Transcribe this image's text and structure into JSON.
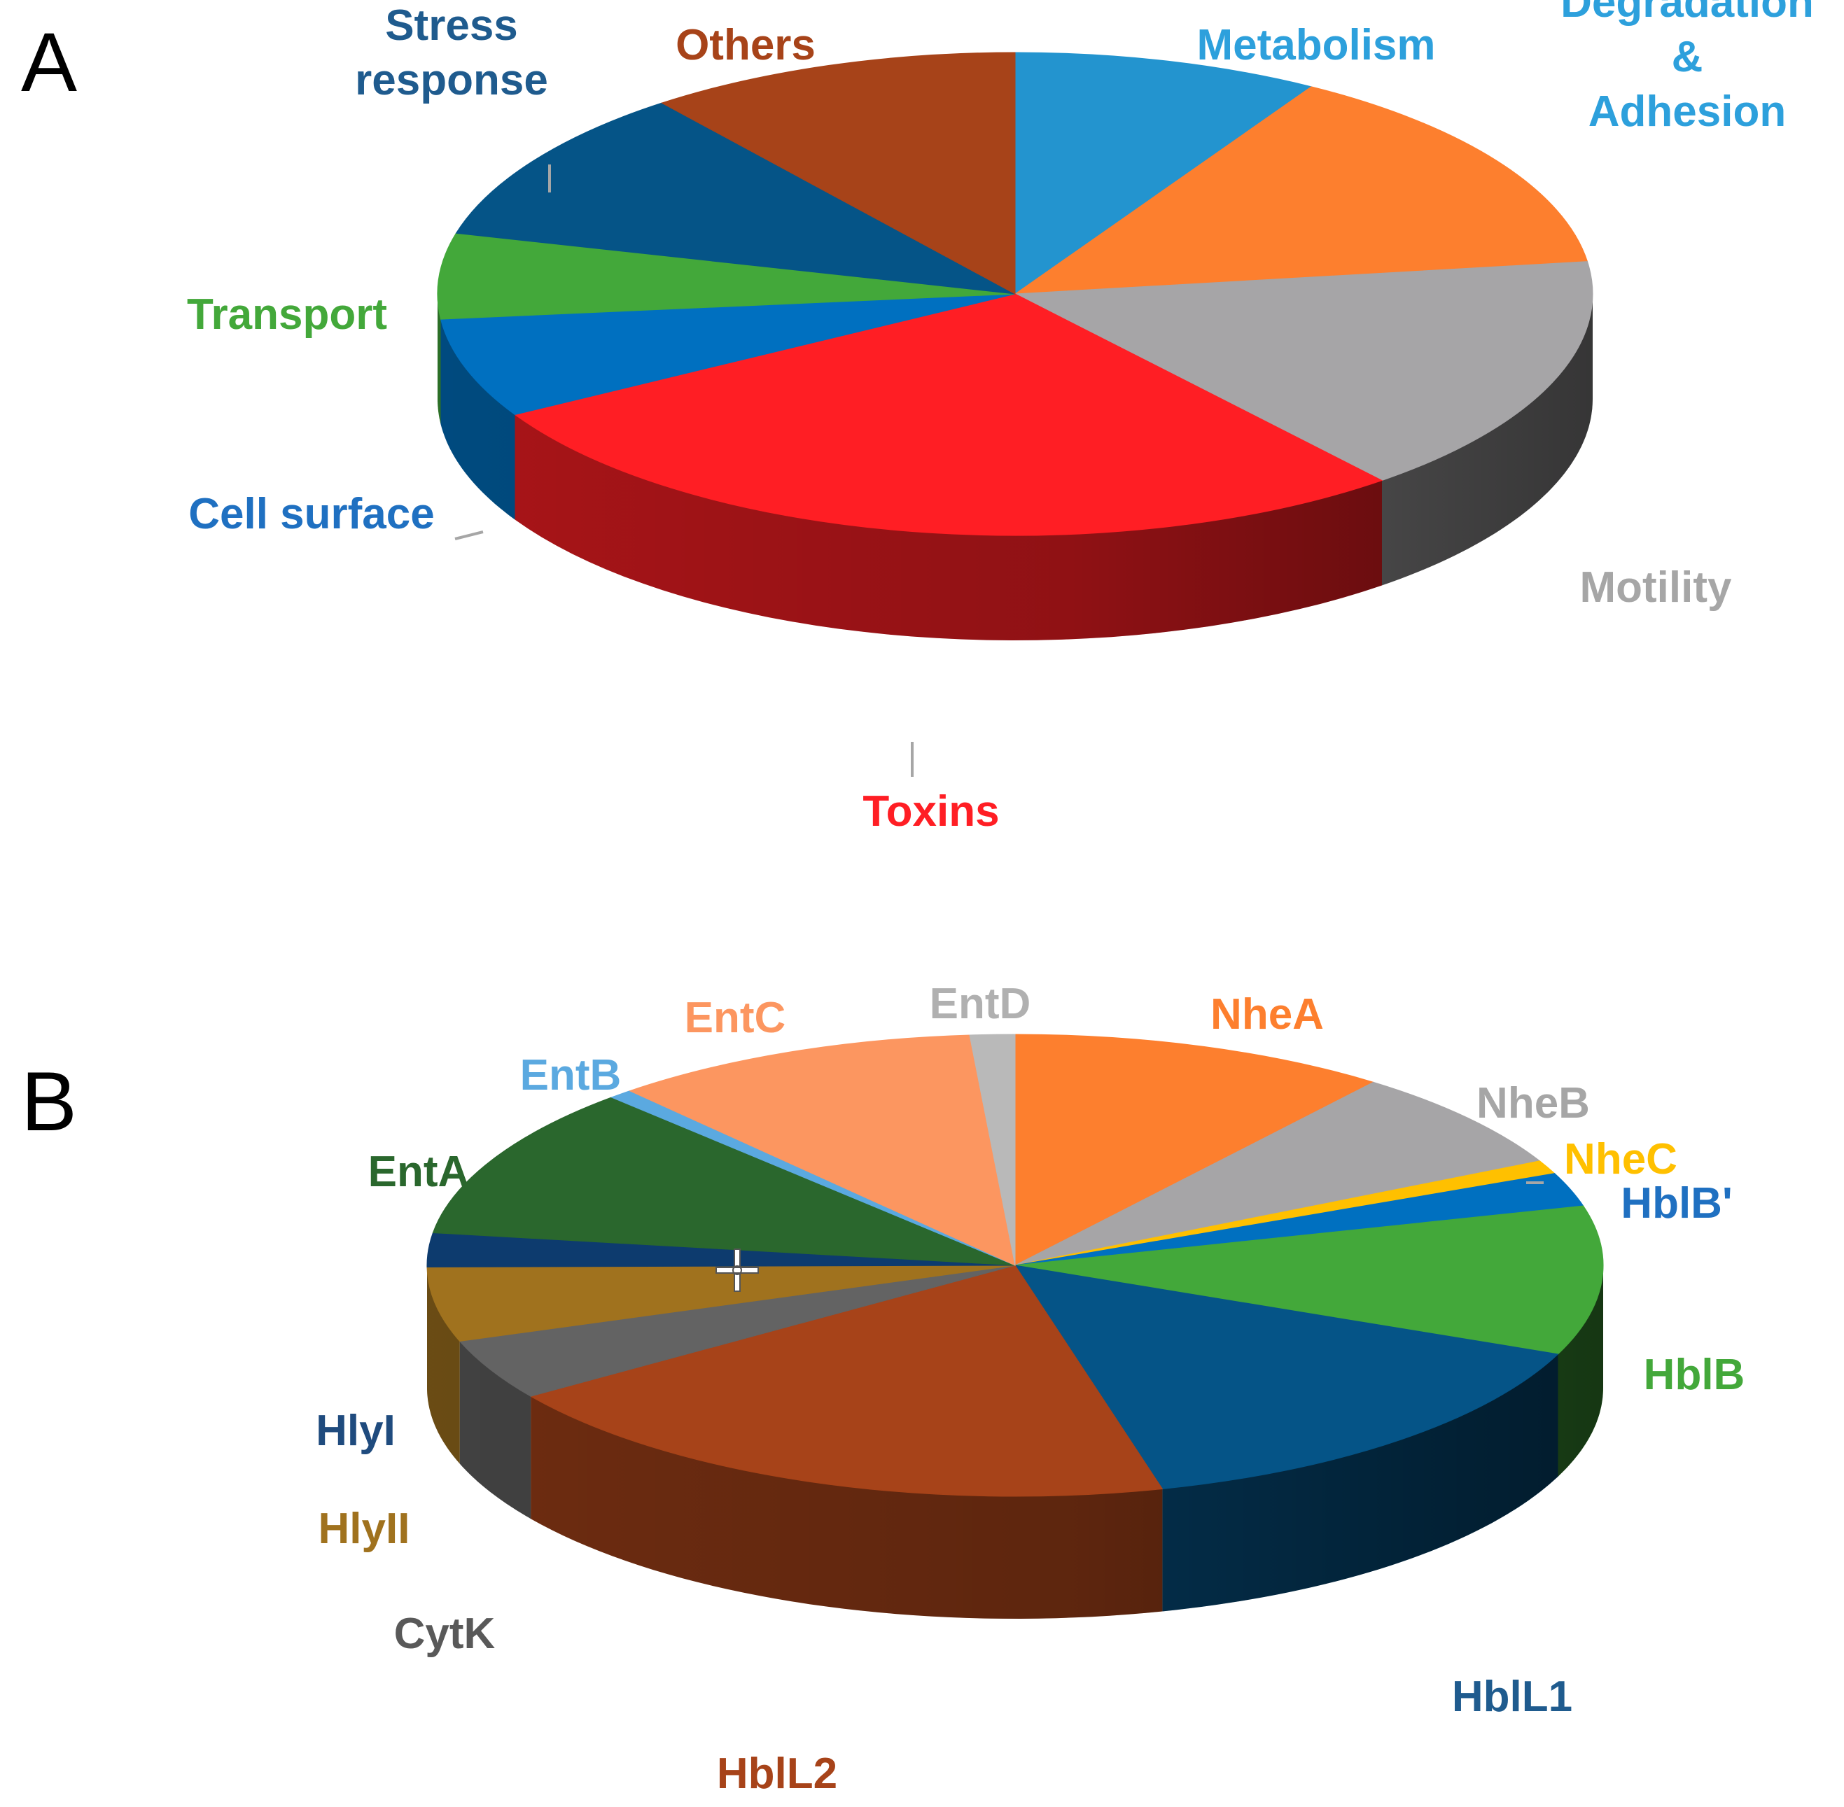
{
  "chart_data": [
    {
      "type": "pie",
      "style": "3d",
      "panel": "A",
      "title": "",
      "categories": [
        "Metabolism",
        "Degradation & Adhesion",
        "Motility",
        "Toxins",
        "Cell surface",
        "Transport",
        "Stress response",
        "Others"
      ],
      "values": [
        9,
        15,
        17,
        29,
        7,
        6,
        11,
        11
      ],
      "colors": [
        "#2394CF",
        "#FD7F2E",
        "#A6A5A7",
        "#FF1E24",
        "#0070C0",
        "#43A83A",
        "#055487",
        "#A74319"
      ],
      "label_lines": [
        [
          "Metabolism"
        ],
        [
          "Degradation",
          "&",
          "Adhesion"
        ],
        [
          "Motility"
        ],
        [
          "Toxins"
        ],
        [
          "Cell surface"
        ],
        [
          "Transport"
        ],
        [
          "Stress",
          "response"
        ],
        [
          "Others"
        ]
      ],
      "label_colors": [
        "#2DA0DC",
        "#2DA0DC",
        "#A6A6A6",
        "#FF1E24",
        "#1F70C1",
        "#43A83A",
        "#1F5B8E",
        "#A74319"
      ]
    },
    {
      "type": "pie",
      "style": "3d",
      "panel": "B",
      "title": "",
      "categories": [
        "NheA",
        "NheB",
        "NheC",
        "HblB'",
        "HblB",
        "HblL1",
        "HblL2",
        "CytK",
        "HlyII",
        "HlyI",
        "EntA",
        "EntB",
        "EntC",
        "EntD"
      ],
      "values": [
        11,
        7.5,
        1,
        2.5,
        11,
        15.5,
        20.5,
        4.5,
        5.5,
        2.5,
        11.3,
        0.7,
        10.7,
        1.3
      ],
      "colors": [
        "#FD7F2E",
        "#A6A5A7",
        "#FFC000",
        "#0070C0",
        "#43A83A",
        "#055487",
        "#A74319",
        "#636363",
        "#A0721E",
        "#0D3B6E",
        "#2A672D",
        "#5BA9E0",
        "#FC9660",
        "#B9B9B9"
      ],
      "label_lines": [
        [
          "NheA"
        ],
        [
          "NheB"
        ],
        [
          "NheC"
        ],
        [
          "HblB'"
        ],
        [
          "HblB"
        ],
        [
          "HblL1"
        ],
        [
          "HblL2"
        ],
        [
          "CytK"
        ],
        [
          "HlyII"
        ],
        [
          "HlyI"
        ],
        [
          "EntA"
        ],
        [
          "EntB"
        ],
        [
          "EntC"
        ],
        [
          "EntD"
        ]
      ],
      "label_colors": [
        "#FD7F2E",
        "#A6A6A6",
        "#FFC000",
        "#1F70C1",
        "#43A83A",
        "#1F5B8E",
        "#A74319",
        "#595959",
        "#A0721E",
        "#1F4B7E",
        "#2A672D",
        "#5BA9E0",
        "#FC9660",
        "#B0B0B0"
      ]
    }
  ],
  "panels": {
    "a": "A",
    "b": "B"
  }
}
